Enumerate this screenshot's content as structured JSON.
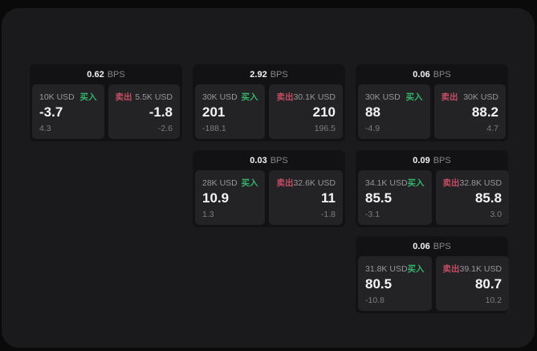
{
  "labels": {
    "bps_suffix": "BPS",
    "buy": "买入",
    "sell": "卖出"
  },
  "colors": {
    "buy_accent": "#35b26a",
    "sell_accent": "#c44d63",
    "panel_bg": "#1a1a1c",
    "card_bg": "#121214",
    "pane_bg": "#232326",
    "outer_bg": "#0a0a0a"
  },
  "cards": [
    {
      "bps": "0.62",
      "buy": {
        "notional": "10K USD",
        "value": "-3.7",
        "sub": "4.3"
      },
      "sell": {
        "notional": "5.5K USD",
        "value": "-1.8",
        "sub": "-2.6"
      }
    },
    {
      "bps": "2.92",
      "buy": {
        "notional": "30K USD",
        "value": "201",
        "sub": "-188.1"
      },
      "sell": {
        "notional": "30.1K USD",
        "value": "210",
        "sub": "196.5"
      }
    },
    {
      "bps": "0.06",
      "buy": {
        "notional": "30K USD",
        "value": "88",
        "sub": "-4.9"
      },
      "sell": {
        "notional": "30K USD",
        "value": "88.2",
        "sub": "4.7"
      }
    },
    {
      "bps": "0.03",
      "buy": {
        "notional": "28K USD",
        "value": "10.9",
        "sub": "1.3"
      },
      "sell": {
        "notional": "32.6K USD",
        "value": "11",
        "sub": "-1.8"
      }
    },
    {
      "bps": "0.09",
      "buy": {
        "notional": "34.1K USD",
        "value": "85.5",
        "sub": "-3.1"
      },
      "sell": {
        "notional": "32.8K USD",
        "value": "85.8",
        "sub": "3.0"
      }
    },
    {
      "bps": "0.06",
      "buy": {
        "notional": "31.8K USD",
        "value": "80.5",
        "sub": "-10.8"
      },
      "sell": {
        "notional": "39.1K USD",
        "value": "80.7",
        "sub": "10.2"
      }
    }
  ]
}
